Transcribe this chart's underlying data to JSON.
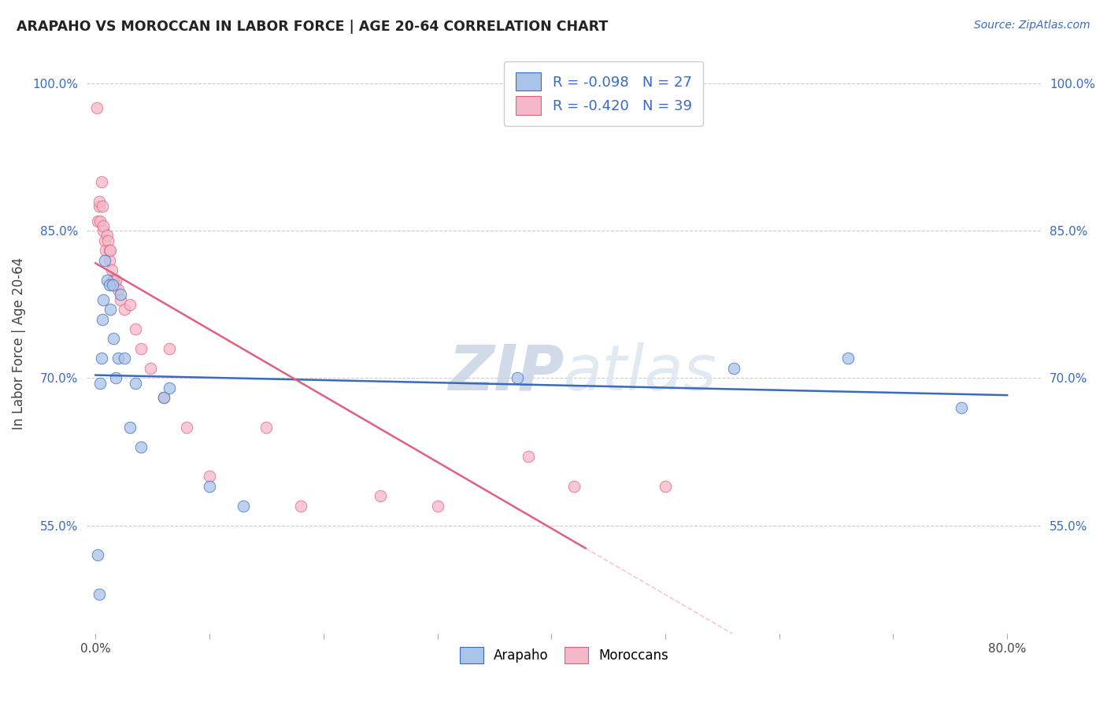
{
  "title": "ARAPAHO VS MOROCCAN IN LABOR FORCE | AGE 20-64 CORRELATION CHART",
  "source": "Source: ZipAtlas.com",
  "ylabel": "In Labor Force | Age 20-64",
  "ylim": [
    0.44,
    1.03
  ],
  "xlim": [
    -0.008,
    0.83
  ],
  "yticks": [
    0.55,
    0.7,
    0.85,
    1.0
  ],
  "ytick_labels": [
    "55.0%",
    "70.0%",
    "85.0%",
    "100.0%"
  ],
  "color_arapaho": "#aac4e8",
  "color_moroccan": "#f5b8c8",
  "color_line_arapaho": "#3a6abf",
  "color_line_moroccan": "#e06080",
  "color_watermark": "#ccd8ea",
  "arapaho_x": [
    0.002,
    0.003,
    0.004,
    0.005,
    0.006,
    0.007,
    0.008,
    0.01,
    0.012,
    0.013,
    0.015,
    0.016,
    0.018,
    0.02,
    0.022,
    0.025,
    0.03,
    0.035,
    0.04,
    0.06,
    0.065,
    0.1,
    0.13,
    0.37,
    0.56,
    0.66,
    0.76
  ],
  "arapaho_y": [
    0.52,
    0.48,
    0.695,
    0.72,
    0.76,
    0.78,
    0.82,
    0.8,
    0.795,
    0.77,
    0.795,
    0.74,
    0.7,
    0.72,
    0.785,
    0.72,
    0.65,
    0.695,
    0.63,
    0.68,
    0.69,
    0.59,
    0.57,
    0.7,
    0.71,
    0.72,
    0.67
  ],
  "moroccan_x": [
    0.001,
    0.002,
    0.003,
    0.003,
    0.004,
    0.005,
    0.006,
    0.007,
    0.007,
    0.008,
    0.009,
    0.01,
    0.011,
    0.012,
    0.012,
    0.013,
    0.014,
    0.015,
    0.016,
    0.017,
    0.018,
    0.02,
    0.022,
    0.025,
    0.03,
    0.035,
    0.04,
    0.048,
    0.06,
    0.065,
    0.08,
    0.1,
    0.15,
    0.18,
    0.25,
    0.3,
    0.38,
    0.42,
    0.5
  ],
  "moroccan_y": [
    0.975,
    0.86,
    0.875,
    0.88,
    0.86,
    0.9,
    0.875,
    0.85,
    0.855,
    0.84,
    0.83,
    0.845,
    0.84,
    0.83,
    0.82,
    0.83,
    0.81,
    0.8,
    0.8,
    0.795,
    0.8,
    0.79,
    0.78,
    0.77,
    0.775,
    0.75,
    0.73,
    0.71,
    0.68,
    0.73,
    0.65,
    0.6,
    0.65,
    0.57,
    0.58,
    0.57,
    0.62,
    0.59,
    0.59
  ],
  "background_color": "#ffffff",
  "grid_color": "#cccccc",
  "legend_label1": "R = -0.098   N = 27",
  "legend_label2": "R = -0.420   N = 39",
  "bottom_label1": "Arapaho",
  "bottom_label2": "Moroccans"
}
